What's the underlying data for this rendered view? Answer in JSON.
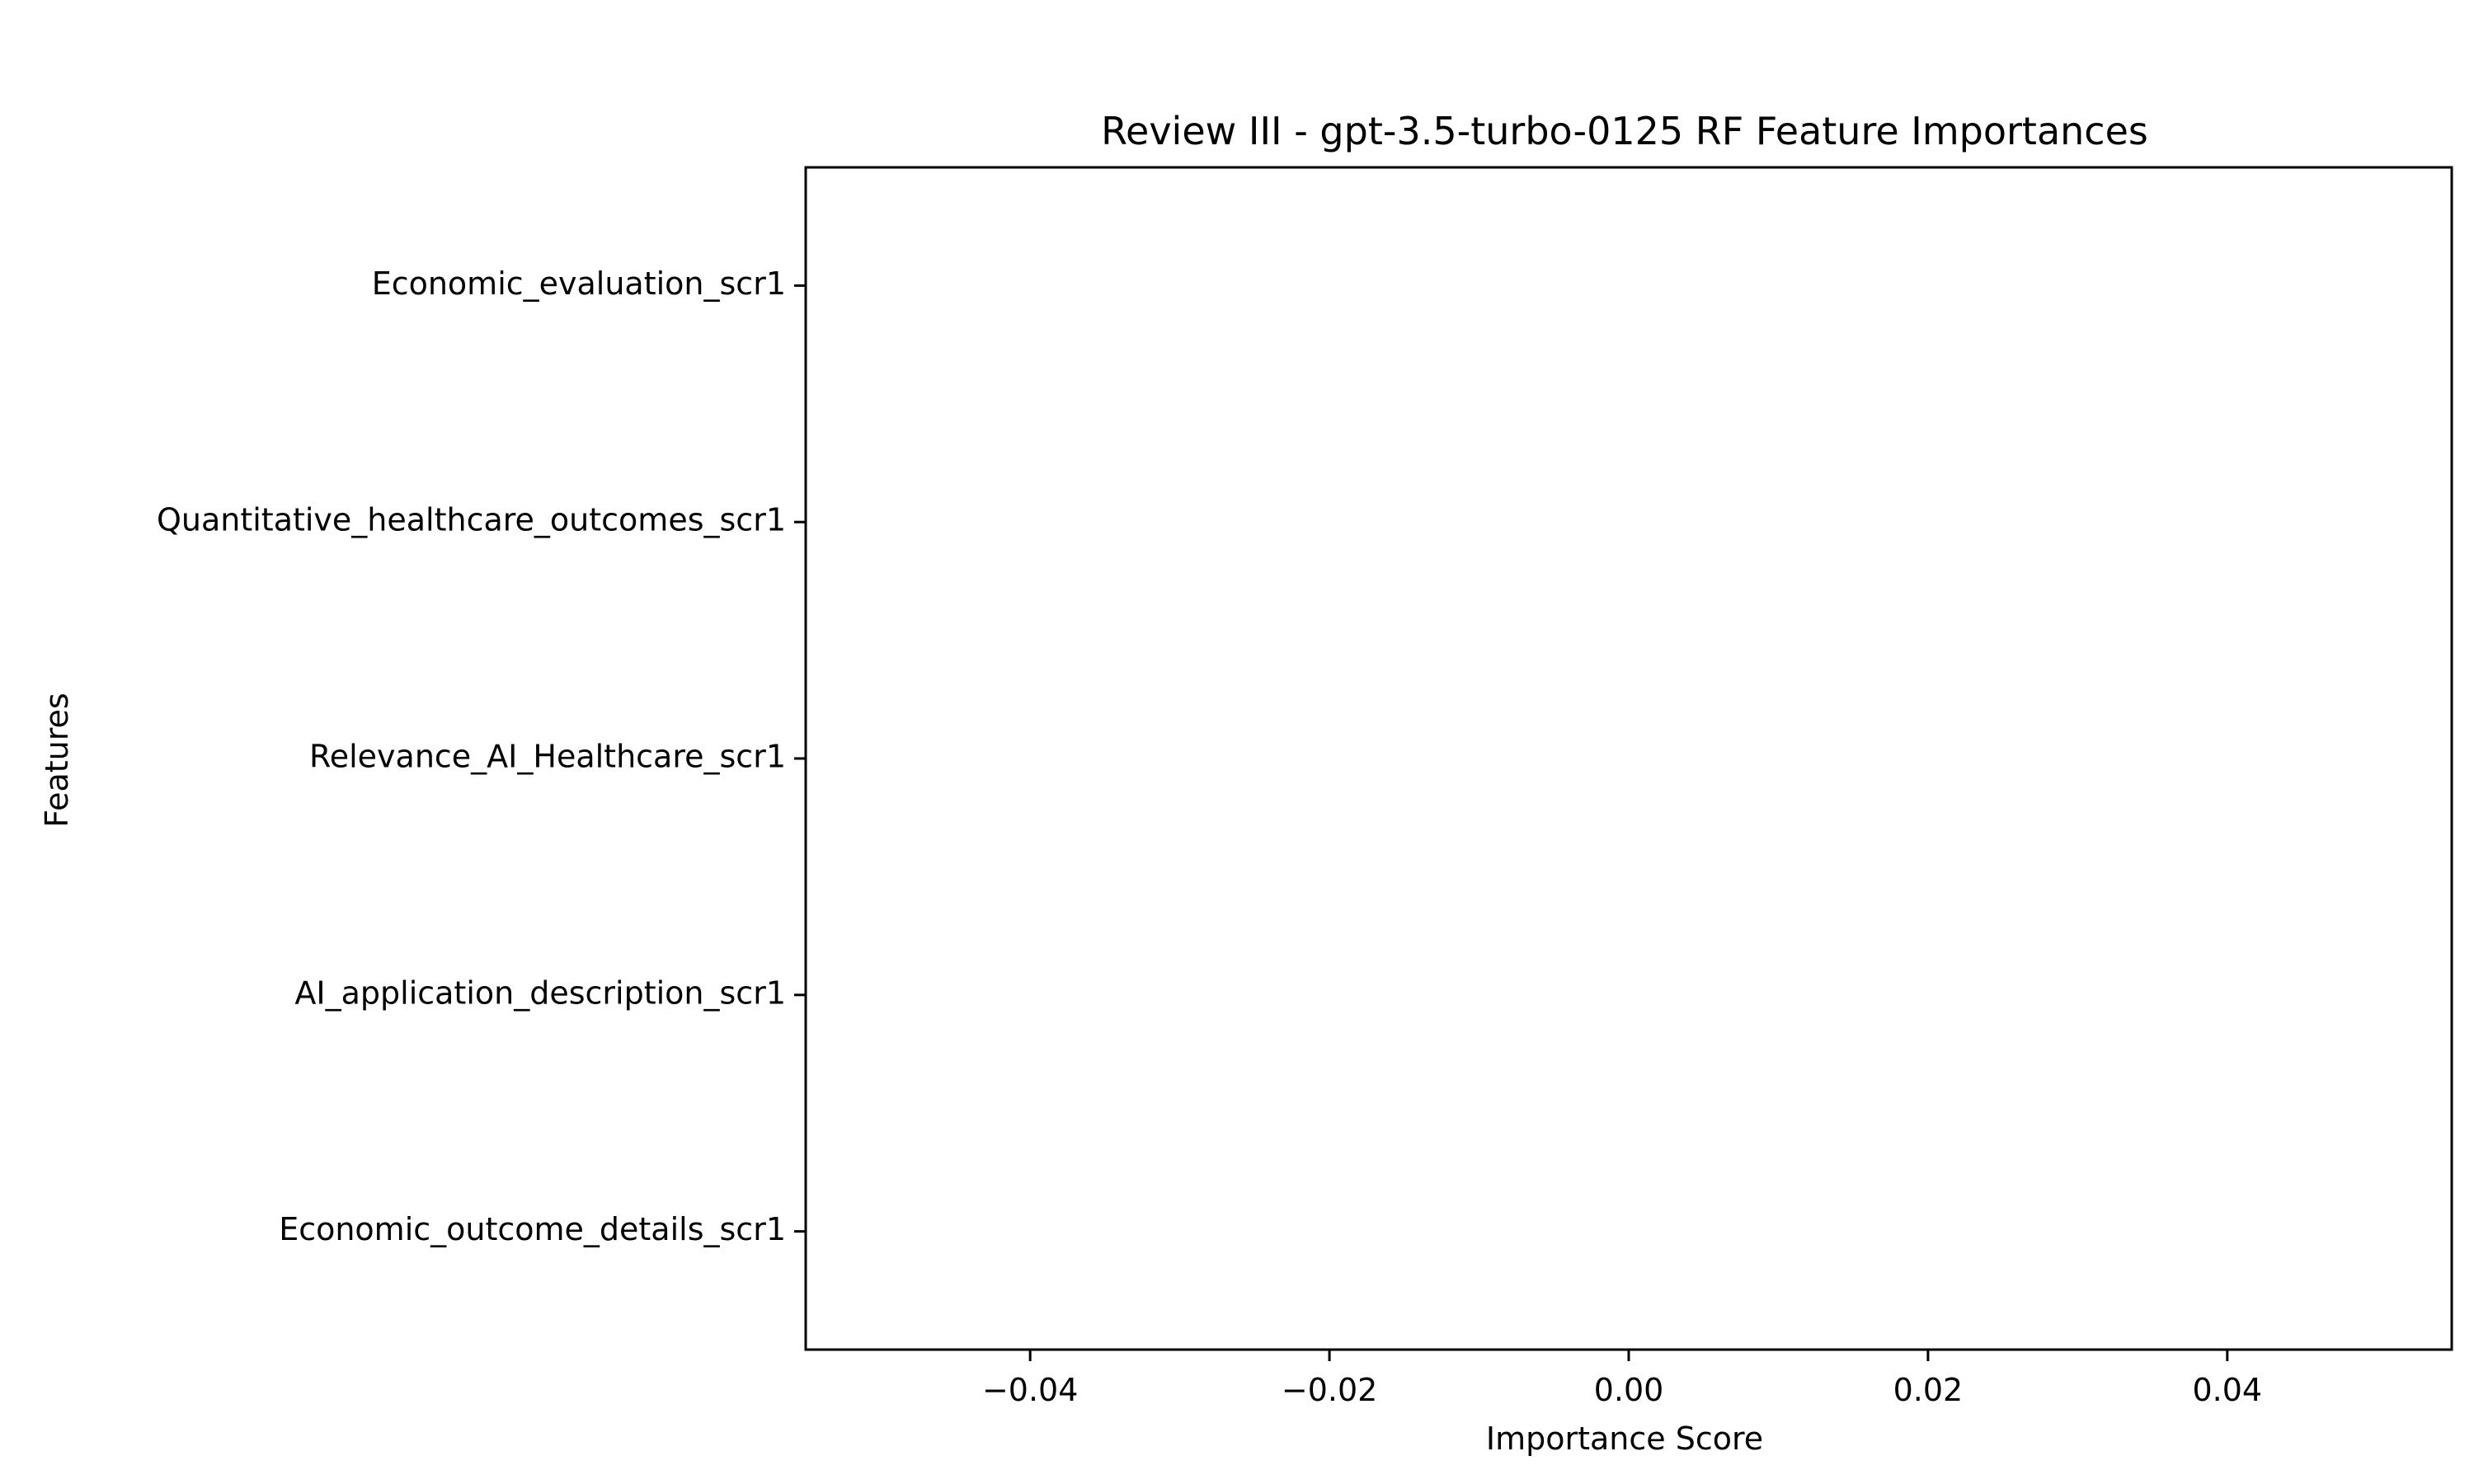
{
  "chart_data": {
    "type": "bar",
    "orientation": "horizontal",
    "title": "Review III - gpt-3.5-turbo-0125 RF Feature Importances",
    "xlabel": "Importance Score",
    "ylabel": "Features",
    "categories": [
      "Economic_evaluation_scr1",
      "Quantitative_healthcare_outcomes_scr1",
      "Relevance_AI_Healthcare_scr1",
      "AI_application_description_scr1",
      "Economic_outcome_details_scr1"
    ],
    "values": [
      0,
      0,
      0,
      0,
      0
    ],
    "xlim": [
      -0.055,
      0.055
    ],
    "xticks": [
      -0.04,
      -0.02,
      0.0,
      0.02,
      0.04
    ],
    "xtick_labels": [
      "−0.04",
      "−0.02",
      "0.00",
      "0.02",
      "0.04"
    ],
    "grid": false,
    "legend": "none",
    "colors": {
      "bar": "#1f77b4",
      "axes": "#000000",
      "background": "#ffffff"
    }
  }
}
